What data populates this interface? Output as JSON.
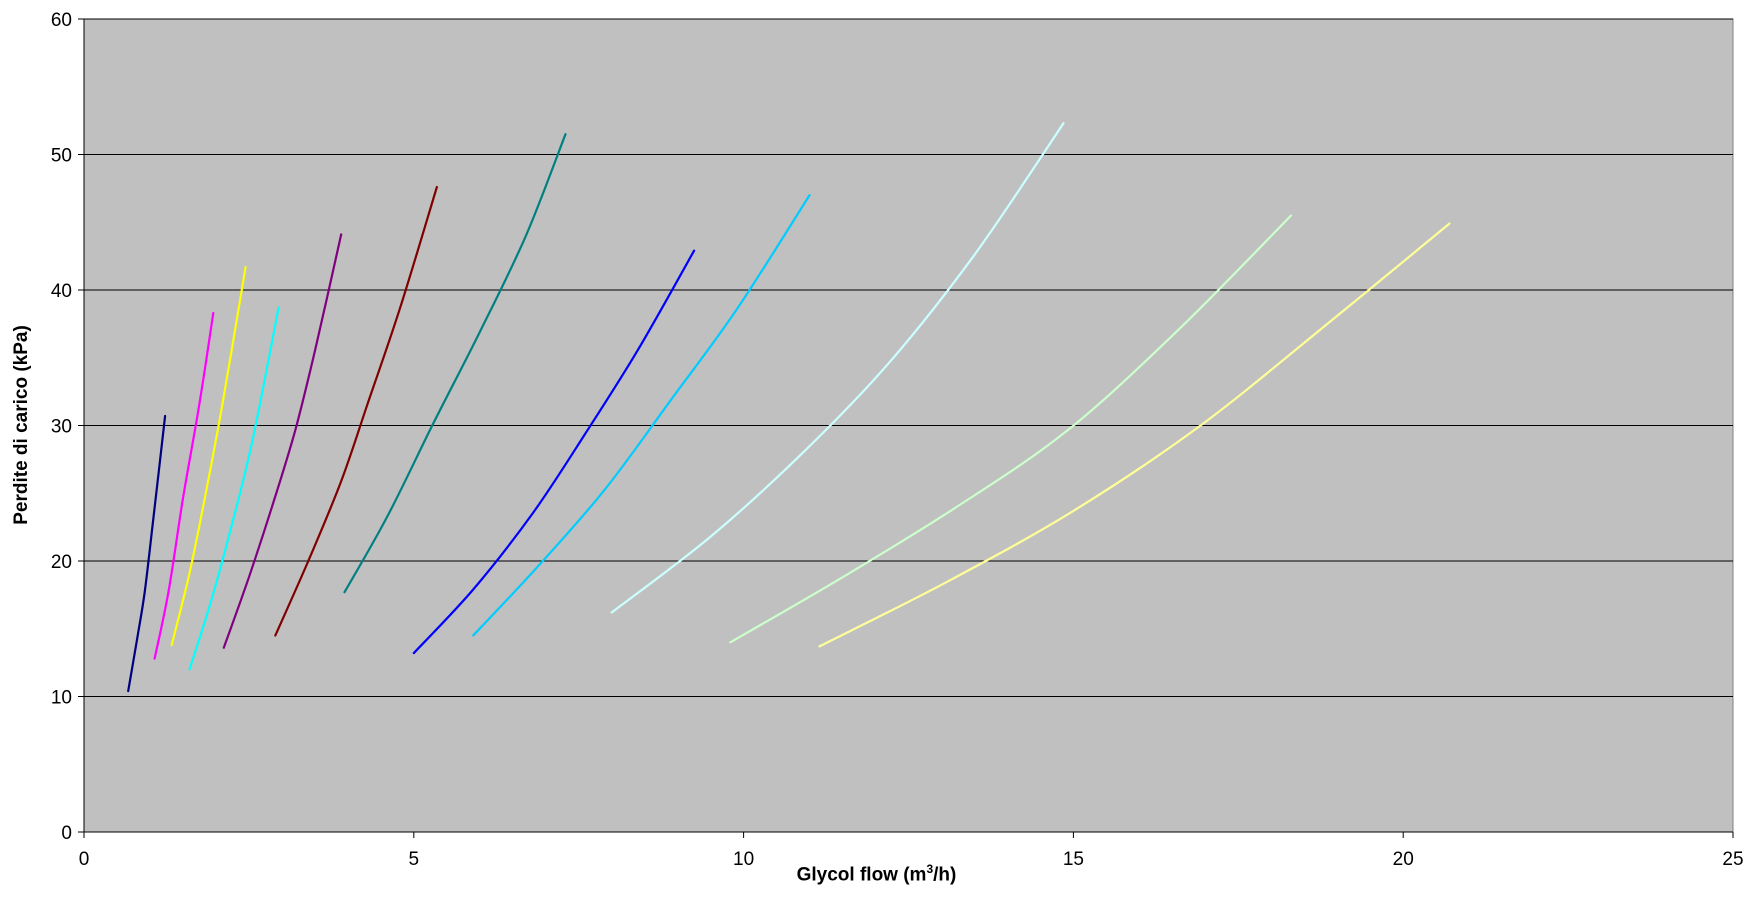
{
  "chart_data": {
    "type": "line",
    "title": "",
    "xlabel": "Glycol flow (m³/h)",
    "xlabel_parts": {
      "before": "Glycol flow (m",
      "sup": "3",
      "after": "/h)"
    },
    "ylabel": "Perdite di carico (kPa)",
    "xlim": [
      0,
      25
    ],
    "ylim": [
      0,
      60
    ],
    "xticks": [
      0,
      5,
      10,
      15,
      20,
      25
    ],
    "yticks": [
      0,
      10,
      20,
      30,
      40,
      50,
      60
    ],
    "grid": {
      "y_major": true,
      "x_major": false
    },
    "legend": "none",
    "plot_background": "#c0c0c0",
    "series": [
      {
        "color": "#000080",
        "x": [
          0.67,
          0.8,
          0.92,
          1.05,
          1.23
        ],
        "y": [
          10.4,
          14.1,
          17.7,
          23.1,
          30.7
        ]
      },
      {
        "color": "#ff00ff",
        "x": [
          1.07,
          1.28,
          1.5,
          1.75,
          1.96
        ],
        "y": [
          12.8,
          17.7,
          24.6,
          31.6,
          38.3
        ]
      },
      {
        "color": "#ffff00",
        "x": [
          1.33,
          1.6,
          1.83,
          2.1,
          2.45
        ],
        "y": [
          13.8,
          19.1,
          24.6,
          31.6,
          41.7
        ]
      },
      {
        "color": "#00ffff",
        "x": [
          1.6,
          1.9,
          2.2,
          2.55,
          2.95
        ],
        "y": [
          12.0,
          16.6,
          21.9,
          28.8,
          38.7
        ]
      },
      {
        "color": "#800080",
        "x": [
          2.12,
          2.5,
          2.85,
          3.2,
          3.5,
          3.9
        ],
        "y": [
          13.6,
          18.8,
          24.0,
          29.6,
          35.5,
          44.1
        ]
      },
      {
        "color": "#800000",
        "x": [
          2.9,
          3.4,
          3.9,
          4.3,
          4.8,
          5.35
        ],
        "y": [
          14.5,
          20.0,
          25.9,
          31.6,
          38.8,
          47.6
        ]
      },
      {
        "color": "#008080",
        "x": [
          3.95,
          4.6,
          5.3,
          6.0,
          6.7,
          7.3
        ],
        "y": [
          17.7,
          23.3,
          30.2,
          36.9,
          44.0,
          51.5
        ]
      },
      {
        "color": "#0000ff",
        "x": [
          5.0,
          5.9,
          6.8,
          7.6,
          8.4,
          9.25
        ],
        "y": [
          13.2,
          17.9,
          23.5,
          29.4,
          35.6,
          42.9
        ]
      },
      {
        "color": "#00ccff",
        "x": [
          5.9,
          6.9,
          7.9,
          8.9,
          9.9,
          11.0
        ],
        "y": [
          14.5,
          19.7,
          25.3,
          31.9,
          38.6,
          47.0
        ]
      },
      {
        "color": "#ccffff",
        "x": [
          8.0,
          9.5,
          10.9,
          12.2,
          13.5,
          14.85
        ],
        "y": [
          16.2,
          21.8,
          28.0,
          34.6,
          42.6,
          52.3
        ]
      },
      {
        "color": "#ccffcc",
        "x": [
          9.8,
          11.5,
          13.2,
          14.9,
          16.6,
          18.3
        ],
        "y": [
          14.0,
          18.8,
          23.9,
          29.6,
          37.1,
          45.5
        ]
      },
      {
        "color": "#ffff99",
        "x": [
          11.15,
          13.1,
          15.0,
          16.9,
          18.8,
          20.7
        ],
        "y": [
          13.7,
          18.5,
          23.7,
          29.9,
          37.3,
          44.9
        ]
      }
    ]
  }
}
